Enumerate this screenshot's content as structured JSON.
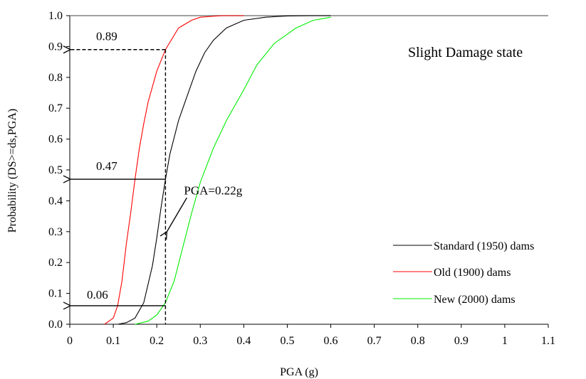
{
  "chart_data": {
    "type": "line",
    "title": "Slight Damage state",
    "xlabel": "PGA (g)",
    "ylabel": "Probability (DS>=ds,PGA)",
    "xlim": [
      0,
      1.1
    ],
    "ylim": [
      0,
      1.0
    ],
    "x_ticks": [
      "0",
      "0.1",
      "0.2",
      "0.3",
      "0.4",
      "0.5",
      "0.6",
      "0.7",
      "0.8",
      "0.9",
      "1",
      "1.1"
    ],
    "y_ticks": [
      "0.0",
      "0.1",
      "0.2",
      "0.3",
      "0.4",
      "0.5",
      "0.6",
      "0.7",
      "0.8",
      "0.9",
      "1.0"
    ],
    "grid": false,
    "legend_position": "bottom-right",
    "series": [
      {
        "name": "Standard (1950) dams",
        "color": "#000000",
        "x": [
          0.11,
          0.13,
          0.15,
          0.17,
          0.19,
          0.2,
          0.21,
          0.22,
          0.23,
          0.25,
          0.27,
          0.29,
          0.31,
          0.33,
          0.36,
          0.4,
          0.45,
          0.5,
          0.55,
          0.6
        ],
        "y": [
          0.0,
          0.005,
          0.02,
          0.07,
          0.19,
          0.28,
          0.38,
          0.47,
          0.55,
          0.66,
          0.74,
          0.82,
          0.88,
          0.92,
          0.96,
          0.985,
          0.995,
          0.999,
          1.0,
          1.0
        ]
      },
      {
        "name": "Old (1900) dams",
        "color": "#ff0000",
        "x": [
          0.08,
          0.1,
          0.11,
          0.12,
          0.13,
          0.14,
          0.15,
          0.16,
          0.17,
          0.18,
          0.2,
          0.22,
          0.25,
          0.28,
          0.3,
          0.35,
          0.4
        ],
        "y": [
          0.0,
          0.02,
          0.06,
          0.14,
          0.26,
          0.36,
          0.47,
          0.57,
          0.65,
          0.72,
          0.82,
          0.89,
          0.96,
          0.985,
          0.995,
          1.0,
          1.0
        ]
      },
      {
        "name": "New (2000) dams",
        "color": "#00ee00",
        "x": [
          0.15,
          0.18,
          0.2,
          0.22,
          0.24,
          0.26,
          0.28,
          0.3,
          0.33,
          0.36,
          0.4,
          0.43,
          0.47,
          0.52,
          0.56,
          0.6
        ],
        "y": [
          0.0,
          0.01,
          0.03,
          0.07,
          0.14,
          0.25,
          0.36,
          0.46,
          0.57,
          0.66,
          0.76,
          0.84,
          0.91,
          0.96,
          0.985,
          0.995
        ]
      }
    ],
    "annotations": [
      {
        "text": "0.89",
        "value": 0.89
      },
      {
        "text": "0.47",
        "value": 0.47
      },
      {
        "text": "0.06",
        "value": 0.06
      },
      {
        "text": "PGA=0.22g",
        "value": 0.22
      }
    ]
  }
}
